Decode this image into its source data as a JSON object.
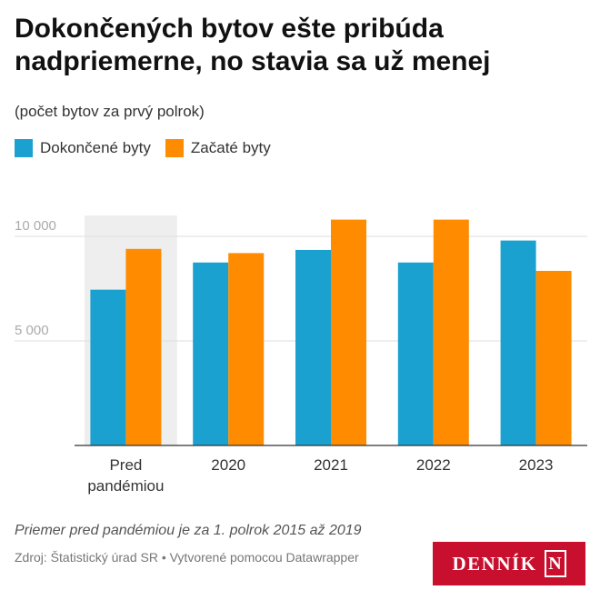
{
  "header": {
    "title": "Dokončených bytov ešte pribúda nadpriemerne, no stavia sa už menej",
    "subtitle": "(počet bytov za prvý polrok)"
  },
  "legend": [
    {
      "label": "Dokončené byty",
      "color": "#1aa1d0"
    },
    {
      "label": "Začaté byty",
      "color": "#ff8c00"
    }
  ],
  "chart_data": {
    "type": "bar",
    "categories": [
      "Pred pandémiou",
      "2020",
      "2021",
      "2022",
      "2023"
    ],
    "series": [
      {
        "name": "Dokončené byty",
        "color": "#1aa1d0",
        "values": [
          7450,
          8750,
          9350,
          8750,
          9800
        ]
      },
      {
        "name": "Začaté byty",
        "color": "#ff8c00",
        "values": [
          9400,
          9200,
          10800,
          10800,
          8350
        ]
      }
    ],
    "y_ticks": [
      5000,
      10000
    ],
    "y_tick_labels": [
      "5 000",
      "10 000"
    ],
    "ylim": [
      0,
      11000
    ],
    "grid": true,
    "highlighted_category": "Pred pandémiou",
    "highlight_color": "#eeeeee"
  },
  "footer": {
    "note": "Priemer pred pandémiou je za 1. polrok 2015 až 2019",
    "source": "Zdroj: Štatistický úrad SR • Vytvorené pomocou Datawrapper",
    "logo_text": "DENNÍK",
    "logo_letter": "N"
  }
}
